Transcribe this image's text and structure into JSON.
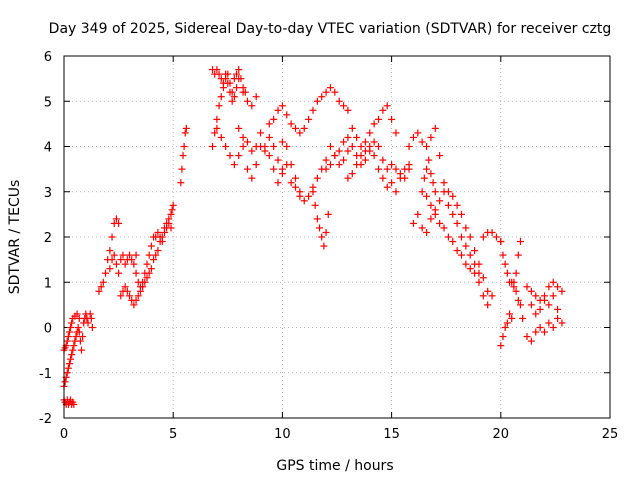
{
  "chart_data": {
    "type": "scatter",
    "title": "Day 349 of 2025, Sidereal Day-to-day VTEC variation (SDTVAR) for receiver cztg",
    "xlabel": "GPS time / hours",
    "ylabel": "SDTVAR / TECUs",
    "xlim": [
      0,
      25
    ],
    "ylim": [
      -2,
      6
    ],
    "xticks": [
      "0",
      "5",
      "10",
      "15",
      "20",
      "25"
    ],
    "yticks": [
      "-2",
      "-1",
      "0",
      "1",
      "2",
      "3",
      "4",
      "5",
      "6"
    ],
    "grid": true,
    "marker": "+",
    "marker_color": "#ff0000",
    "series": [
      {
        "name": "SDTVAR",
        "x": [
          0.0,
          0.05,
          0.1,
          0.15,
          0.2,
          0.25,
          0.3,
          0.35,
          0.4,
          0.45,
          0.5,
          0.55,
          0.6,
          0.65,
          0.7,
          0.75,
          0.8,
          0.85,
          0.9,
          0.95,
          1.0,
          1.05,
          1.1,
          1.2,
          1.25,
          1.3,
          0.0,
          0.05,
          0.1,
          0.15,
          0.2,
          0.25,
          0.3,
          0.35,
          0.4,
          0.45,
          0.0,
          0.05,
          0.1,
          0.15,
          0.2,
          0.25,
          0.3,
          0.35,
          0.4,
          0.5,
          0.6,
          0.7,
          1.6,
          1.7,
          1.8,
          1.9,
          2.0,
          2.1,
          2.2,
          2.3,
          2.4,
          2.5,
          2.1,
          2.2,
          2.3,
          2.4,
          2.5,
          2.6,
          2.7,
          2.8,
          2.9,
          3.0,
          3.1,
          3.2,
          3.3,
          2.6,
          2.7,
          2.8,
          2.9,
          3.0,
          3.1,
          3.2,
          3.3,
          3.4,
          3.5,
          3.6,
          3.7,
          3.8,
          3.9,
          4.0,
          4.1,
          4.2,
          4.3,
          4.4,
          4.5,
          3.3,
          3.4,
          3.5,
          3.6,
          3.7,
          3.8,
          3.9,
          4.0,
          4.1,
          4.2,
          4.3,
          4.4,
          4.5,
          4.6,
          4.7,
          4.8,
          4.9,
          4.6,
          4.7,
          4.8,
          4.9,
          4.95,
          5.0,
          5.35,
          5.4,
          5.45,
          5.5,
          5.55,
          5.6,
          6.8,
          6.9,
          7.0,
          7.1,
          7.2,
          7.3,
          7.4,
          7.5,
          7.6,
          7.7,
          7.8,
          7.9,
          8.0,
          8.1,
          8.2,
          8.3,
          6.8,
          6.9,
          7.0,
          7.1,
          7.2,
          7.3,
          7.4,
          7.5,
          7.6,
          7.7,
          7.8,
          7.9,
          8.0,
          8.2,
          8.4,
          8.6,
          8.8,
          7.0,
          7.2,
          7.4,
          7.6,
          7.8,
          8.0,
          8.2,
          8.4,
          8.6,
          8.8,
          9.0,
          9.2,
          9.4,
          9.6,
          9.8,
          10.0,
          8.0,
          8.2,
          8.4,
          8.6,
          8.8,
          9.0,
          9.2,
          9.4,
          9.6,
          9.8,
          10.0,
          10.2,
          10.4,
          10.6,
          10.8,
          9.4,
          9.6,
          9.8,
          10.0,
          10.2,
          10.4,
          10.6,
          10.8,
          11.0,
          11.2,
          11.4,
          11.6,
          11.8,
          12.0,
          12.2,
          12.4,
          12.6,
          12.8,
          13.0,
          10.0,
          10.2,
          10.4,
          10.6,
          10.8,
          11.0,
          11.2,
          11.4,
          11.6,
          11.8,
          12.0,
          12.2,
          11.4,
          11.5,
          11.6,
          11.7,
          11.8,
          11.9,
          12.0,
          12.1,
          12.0,
          12.2,
          12.4,
          12.6,
          12.8,
          13.0,
          13.2,
          13.4,
          13.6,
          13.8,
          14.0,
          14.2,
          14.4,
          14.6,
          14.8,
          15.0,
          15.2,
          12.4,
          12.6,
          12.8,
          13.0,
          13.2,
          13.4,
          13.6,
          13.8,
          14.0,
          14.2,
          14.4,
          14.6,
          14.8,
          15.0,
          15.2,
          15.4,
          15.6,
          15.8,
          13.0,
          13.2,
          13.4,
          13.6,
          13.8,
          14.0,
          14.2,
          14.4,
          14.6,
          14.8,
          15.0,
          15.2,
          15.4,
          15.6,
          15.8,
          15.8,
          16.0,
          16.2,
          16.4,
          16.6,
          16.8,
          17.0,
          17.2,
          17.4,
          17.6,
          17.8,
          18.0,
          18.2,
          18.4,
          18.6,
          18.8,
          19.0,
          19.2,
          19.4,
          19.6,
          16.0,
          16.2,
          16.4,
          16.6,
          16.8,
          17.0,
          17.2,
          17.4,
          17.6,
          17.8,
          18.0,
          18.2,
          18.4,
          18.6,
          18.8,
          19.0,
          16.4,
          16.6,
          16.8,
          17.0,
          17.2,
          17.4,
          17.6,
          17.8,
          18.0,
          18.2,
          18.4,
          18.6,
          18.8,
          19.0,
          19.2,
          19.4,
          16.5,
          16.6,
          16.7,
          16.8,
          16.9,
          17.0,
          19.2,
          19.4,
          19.6,
          19.8,
          20.0,
          20.0,
          20.1,
          20.2,
          20.3,
          20.4,
          20.5,
          20.6,
          20.7,
          20.8,
          20.9,
          20.0,
          20.1,
          20.2,
          20.3,
          20.4,
          20.5,
          20.6,
          20.7,
          20.8,
          20.9,
          21.0,
          21.2,
          21.4,
          21.6,
          21.8,
          22.0,
          22.2,
          22.4,
          22.6,
          22.8,
          21.2,
          21.4,
          21.6,
          21.8,
          22.0,
          22.2,
          22.4,
          22.6,
          22.8,
          21.4,
          21.6,
          21.8,
          22.0,
          22.2,
          22.4,
          22.6
        ],
        "y": [
          -1.3,
          -1.2,
          -1.1,
          -1.0,
          -0.9,
          -0.8,
          -0.7,
          -0.6,
          -0.5,
          -0.4,
          -0.3,
          -0.2,
          -0.1,
          0.0,
          -0.1,
          -0.3,
          -0.5,
          -0.2,
          0.1,
          0.2,
          0.3,
          0.2,
          0.1,
          0.3,
          0.2,
          0.0,
          -1.6,
          -1.65,
          -1.7,
          -1.6,
          -1.7,
          -1.65,
          -1.6,
          -1.7,
          -1.65,
          -1.7,
          -0.5,
          -0.45,
          -0.4,
          -0.3,
          -0.2,
          -0.1,
          0.0,
          0.1,
          0.2,
          0.25,
          0.3,
          0.2,
          0.8,
          0.9,
          1.0,
          1.2,
          1.5,
          1.7,
          2.0,
          2.3,
          2.4,
          2.3,
          1.3,
          1.5,
          1.6,
          1.4,
          1.2,
          1.5,
          1.6,
          1.4,
          1.5,
          1.6,
          1.5,
          1.4,
          1.6,
          0.7,
          0.8,
          0.9,
          0.8,
          0.7,
          0.6,
          0.5,
          0.6,
          0.7,
          0.8,
          0.9,
          1.0,
          1.1,
          1.2,
          1.3,
          1.5,
          1.6,
          1.7,
          1.9,
          2.0,
          1.2,
          1.0,
          0.9,
          1.0,
          1.2,
          1.4,
          1.6,
          1.8,
          2.0,
          2.0,
          2.1,
          2.0,
          1.9,
          2.1,
          2.2,
          2.3,
          2.2,
          2.2,
          2.3,
          2.4,
          2.5,
          2.6,
          2.7,
          3.2,
          3.5,
          3.8,
          4.0,
          4.3,
          4.4,
          4.0,
          4.3,
          4.6,
          4.9,
          5.1,
          5.3,
          5.5,
          5.6,
          5.4,
          5.2,
          5.5,
          5.6,
          5.7,
          5.5,
          5.3,
          5.2,
          5.7,
          5.6,
          5.7,
          5.6,
          5.5,
          5.4,
          5.6,
          5.4,
          5.2,
          5.0,
          5.1,
          5.3,
          5.5,
          5.2,
          5.0,
          4.9,
          5.1,
          4.4,
          4.2,
          4.0,
          3.8,
          3.6,
          3.8,
          4.0,
          3.5,
          3.3,
          3.6,
          4.0,
          3.9,
          4.2,
          4.0,
          3.7,
          3.5,
          4.4,
          4.2,
          4.1,
          3.9,
          4.0,
          4.3,
          4.0,
          3.8,
          3.5,
          3.2,
          3.4,
          3.6,
          3.2,
          3.1,
          2.9,
          4.5,
          4.6,
          4.8,
          4.9,
          4.7,
          4.5,
          4.4,
          4.3,
          4.4,
          4.6,
          4.8,
          5.0,
          5.1,
          5.2,
          5.3,
          5.2,
          5.0,
          4.9,
          4.8,
          4.1,
          4.0,
          3.6,
          3.3,
          3.0,
          2.8,
          2.9,
          3.1,
          3.3,
          3.5,
          3.7,
          4.0,
          3.0,
          2.7,
          2.4,
          2.2,
          2.0,
          1.8,
          2.1,
          2.5,
          3.5,
          3.6,
          3.8,
          3.9,
          4.1,
          4.2,
          4.4,
          4.2,
          4.0,
          4.1,
          4.3,
          4.5,
          4.6,
          4.8,
          4.9,
          4.6,
          4.3,
          3.8,
          3.6,
          3.7,
          3.9,
          4.0,
          3.8,
          3.6,
          3.7,
          3.9,
          4.1,
          4.0,
          3.7,
          3.5,
          3.6,
          3.5,
          3.4,
          3.3,
          3.5,
          3.3,
          3.4,
          3.6,
          3.8,
          3.9,
          4.0,
          3.8,
          3.5,
          3.3,
          3.1,
          3.2,
          3.0,
          3.3,
          3.5,
          3.6,
          4.0,
          4.2,
          4.3,
          4.1,
          4.0,
          4.2,
          4.4,
          3.8,
          3.2,
          3.0,
          2.9,
          2.7,
          2.5,
          2.2,
          2.0,
          1.7,
          1.4,
          1.1,
          0.8,
          0.7,
          2.3,
          2.5,
          2.2,
          2.1,
          2.4,
          2.6,
          2.8,
          3.0,
          2.7,
          2.5,
          2.3,
          2.0,
          1.8,
          1.6,
          1.4,
          1.2,
          3.0,
          2.9,
          2.7,
          2.5,
          2.3,
          2.2,
          2.0,
          1.9,
          1.7,
          1.6,
          1.4,
          1.3,
          1.2,
          1.0,
          0.7,
          0.5,
          3.3,
          3.5,
          3.7,
          3.4,
          3.2,
          3.0,
          2.0,
          2.1,
          2.1,
          2.0,
          1.9,
          1.9,
          1.6,
          1.4,
          1.2,
          1.0,
          1.0,
          0.9,
          1.2,
          1.6,
          1.9,
          -0.4,
          -0.2,
          0.0,
          0.1,
          0.3,
          0.2,
          1.0,
          0.8,
          0.6,
          0.5,
          0.2,
          0.9,
          0.8,
          0.7,
          0.6,
          0.7,
          0.9,
          1.0,
          0.9,
          0.8,
          -0.2,
          -0.3,
          -0.1,
          0.0,
          -0.1,
          0.1,
          0.0,
          0.2,
          0.1,
          0.5,
          0.3,
          0.4,
          0.6,
          0.5,
          0.7,
          0.4
        ]
      }
    ]
  }
}
